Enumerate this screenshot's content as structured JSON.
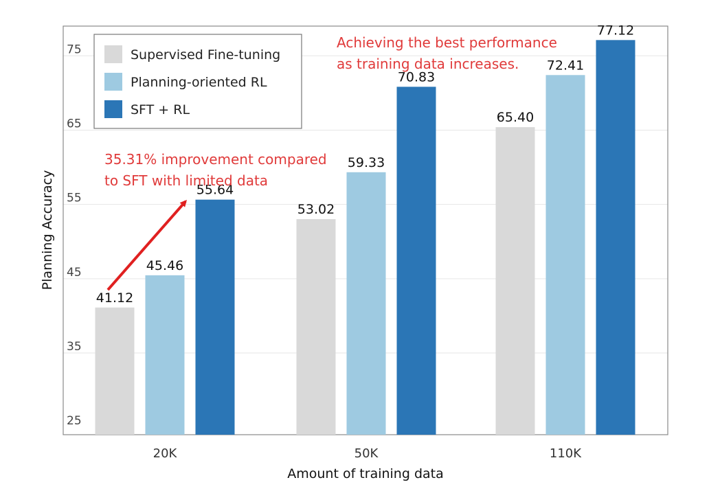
{
  "chart_data": {
    "type": "bar",
    "categories": [
      "20K",
      "50K",
      "110K"
    ],
    "series": [
      {
        "name": "Supervised Fine-tuning",
        "color": "#d9d9d9",
        "values": [
          41.12,
          53.02,
          65.4
        ],
        "labels": [
          "41.12",
          "53.02",
          "65.40"
        ]
      },
      {
        "name": "Planning-oriented RL",
        "color": "#9ecae1",
        "values": [
          45.46,
          59.33,
          72.41
        ],
        "labels": [
          "45.46",
          "59.33",
          "72.41"
        ]
      },
      {
        "name": "SFT + RL",
        "color": "#2b76b6",
        "values": [
          55.64,
          70.83,
          77.12
        ],
        "labels": [
          "55.64",
          "70.83",
          "77.12"
        ]
      }
    ],
    "xlabel": "Amount of training data",
    "ylabel": "Planning Accuracy",
    "ylim": [
      24,
      79
    ],
    "yticks": [
      25,
      35,
      45,
      55,
      65,
      75
    ],
    "grid": true,
    "legend": "top-left",
    "annotations": [
      {
        "lines": [
          "Achieving the best performance",
          "as training data increases."
        ],
        "color": "#e03a3a"
      },
      {
        "lines": [
          "35.31%  improvement compared",
          "to SFT with limited data"
        ],
        "color": "#e03a3a",
        "arrow_from": {
          "category": "20K",
          "value": 43.5
        },
        "arrow_to": {
          "category": "20K",
          "value": 55.4
        }
      }
    ]
  }
}
